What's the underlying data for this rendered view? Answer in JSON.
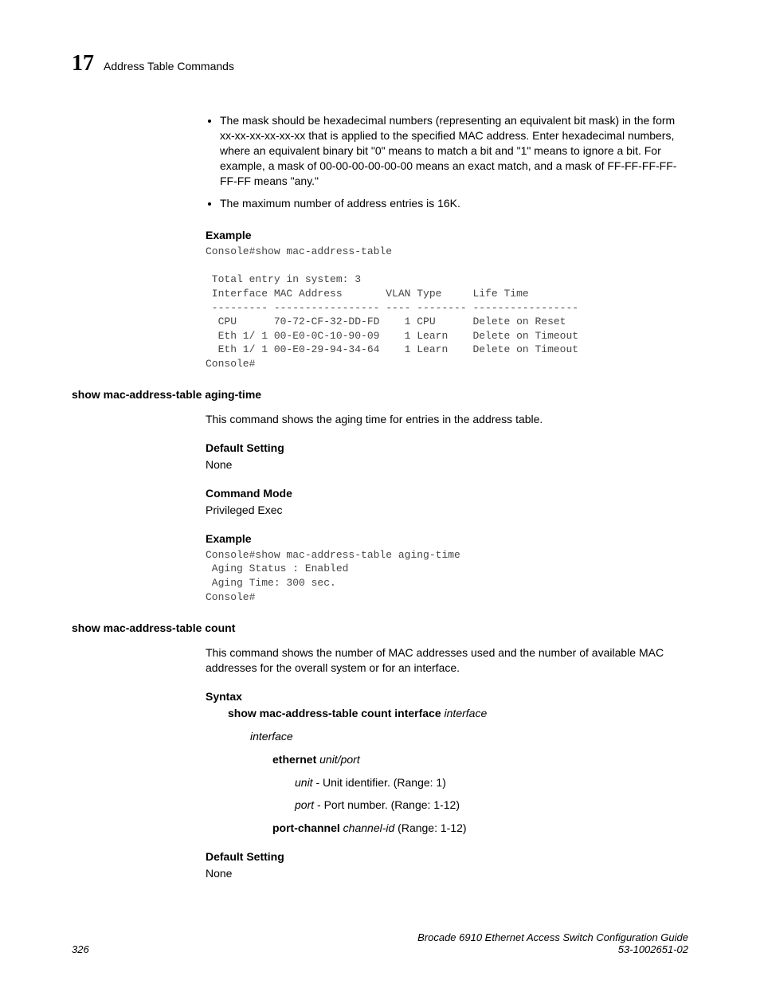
{
  "header": {
    "chapter_number": "17",
    "chapter_title": "Address Table Commands"
  },
  "bullets": [
    "The mask should be hexadecimal numbers (representing an equivalent bit mask) in the form xx-xx-xx-xx-xx-xx that is applied to the specified MAC address. Enter hexadecimal numbers, where an equivalent binary bit \"0\" means to match a bit and \"1\" means to ignore a bit. For example, a mask of 00-00-00-00-00-00 means an exact match, and a mask of FF-FF-FF-FF-FF-FF means \"any.\"",
    "The maximum number of address entries is 16K."
  ],
  "section1": {
    "example_label": "Example",
    "code": "Console#show mac-address-table\n\n Total entry in system: 3\n Interface MAC Address       VLAN Type     Life Time\n --------- ----------------- ---- -------- -----------------\n  CPU      70-72-CF-32-DD-FD    1 CPU      Delete on Reset\n  Eth 1/ 1 00-E0-0C-10-90-09    1 Learn    Delete on Timeout\n  Eth 1/ 1 00-E0-29-94-34-64    1 Learn    Delete on Timeout\nConsole#"
  },
  "cmd1": {
    "title": "show mac-address-table aging-time",
    "desc": "This command shows the aging time for entries in the address table.",
    "default_label": "Default Setting",
    "default_value": "None",
    "mode_label": "Command Mode",
    "mode_value": "Privileged Exec",
    "example_label": "Example",
    "code": "Console#show mac-address-table aging-time\n Aging Status : Enabled\n Aging Time: 300 sec.\nConsole#"
  },
  "cmd2": {
    "title": "show mac-address-table count",
    "desc": "This command shows the number of MAC addresses used and the number of available MAC addresses for the overall system or for an interface.",
    "syntax_label": "Syntax",
    "syntax": {
      "cmd_bold": "show mac-address-table count interface",
      "cmd_italic": " interface",
      "interface_label": "interface",
      "ethernet_bold": "ethernet",
      "ethernet_italic": " unit/port",
      "unit_italic": "unit",
      "unit_desc": " - Unit identifier. (Range: 1)",
      "port_italic": "port",
      "port_desc": " - Port number. (Range: 1-12)",
      "portchannel_bold": "port-channel",
      "portchannel_italic": " channel-id",
      "portchannel_desc": " (Range: 1-12)"
    },
    "default_label": "Default Setting",
    "default_value": "None"
  },
  "footer": {
    "page_number": "326",
    "doc_title": "Brocade 6910 Ethernet Access Switch Configuration Guide",
    "doc_id": "53-1002651-02"
  }
}
